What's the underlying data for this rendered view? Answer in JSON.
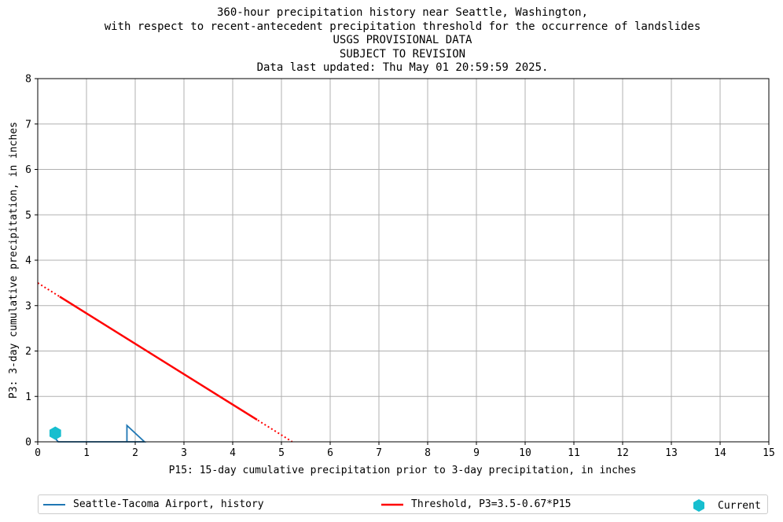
{
  "chart_data": {
    "type": "line",
    "title_lines": [
      "360-hour precipitation history near Seattle, Washington,",
      "with respect to recent-antecedent precipitation threshold for the occurrence of landslides",
      "USGS PROVISIONAL DATA",
      "SUBJECT TO REVISION",
      "Data last updated: Thu May 01 20:59:59 2025."
    ],
    "xlabel": "P15: 15-day cumulative precipitation prior to 3-day precipitation, in inches",
    "ylabel": "P3: 3-day cumulative precipitation, in inches",
    "xlim": [
      0,
      15
    ],
    "ylim": [
      0,
      8
    ],
    "xticks": [
      0,
      1,
      2,
      3,
      4,
      5,
      6,
      7,
      8,
      9,
      10,
      11,
      12,
      13,
      14,
      15
    ],
    "yticks": [
      0,
      1,
      2,
      3,
      4,
      5,
      6,
      7,
      8
    ],
    "grid": true,
    "legend_position": "bottom",
    "series": [
      {
        "name": "Seattle-Tacoma Airport, history",
        "color": "#1f77b4",
        "x": [
          0.38,
          0.38,
          0.42,
          1.82,
          1.83,
          1.83,
          2.19,
          1.83
        ],
        "y": [
          0.21,
          0.05,
          0.0,
          0.0,
          0.0,
          0.36,
          0.0,
          0.0
        ]
      },
      {
        "name": "Threshold, P3=3.5-0.67*P15",
        "color": "#ff0000",
        "equation": {
          "intercept": 3.5,
          "slope": -0.67
        },
        "solid_range": [
          0.45,
          4.5
        ],
        "dotted_range": [
          0.0,
          5.22
        ]
      },
      {
        "name": "Current",
        "color": "#17becf",
        "marker": "hexagon",
        "x": [
          0.36
        ],
        "y": [
          0.19
        ]
      }
    ]
  }
}
